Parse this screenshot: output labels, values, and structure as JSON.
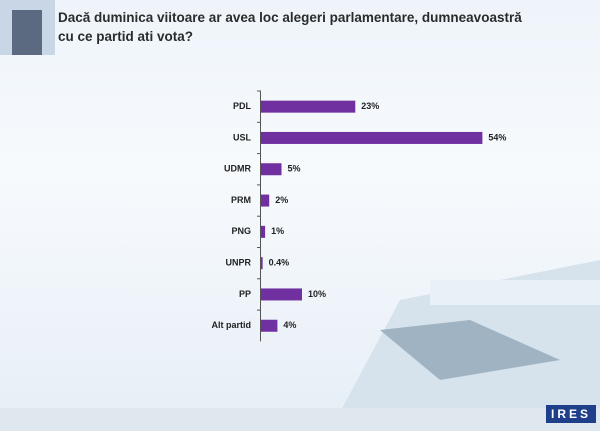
{
  "chart_data": {
    "type": "bar",
    "orientation": "horizontal",
    "title": "Dacă duminica viitoare ar avea loc alegeri parlamentare, dumneavoastră cu ce partid ati vota?",
    "categories": [
      "PDL",
      "USL",
      "UDMR",
      "PRM",
      "PNG",
      "UNPR",
      "PP",
      "Alt partid"
    ],
    "values": [
      23,
      54,
      5,
      2,
      1,
      0.4,
      10,
      4
    ],
    "value_labels": [
      "23%",
      "54%",
      "5%",
      "2%",
      "1%",
      "0.4%",
      "10%",
      "4%"
    ],
    "color": "#7030a0"
  },
  "logo": "IRES"
}
